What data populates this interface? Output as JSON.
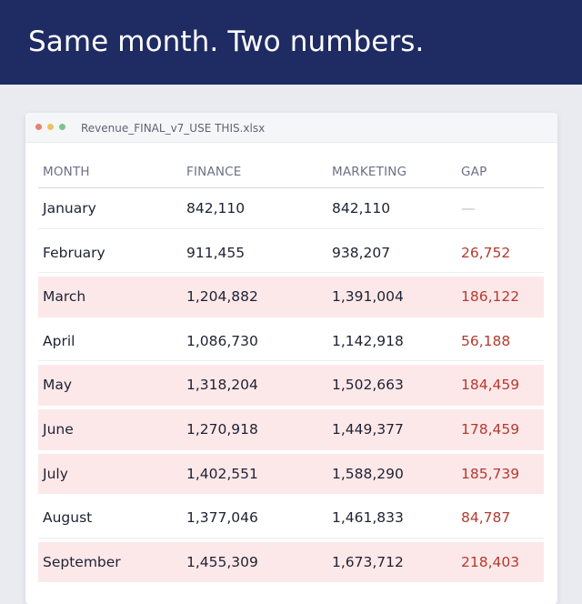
{
  "banner": {
    "headline": "Same month. Two numbers."
  },
  "window": {
    "filename": "Revenue_FINAL_v7_USE THIS.xlsx"
  },
  "table": {
    "columns": [
      "MONTH",
      "FINANCE",
      "MARKETING",
      "GAP"
    ],
    "rows": [
      {
        "month": "January",
        "finance": "842,110",
        "marketing": "842,110",
        "gap": "—",
        "highlighted": false
      },
      {
        "month": "February",
        "finance": "911,455",
        "marketing": "938,207",
        "gap": "26,752",
        "highlighted": false
      },
      {
        "month": "March",
        "finance": "1,204,882",
        "marketing": "1,391,004",
        "gap": "186,122",
        "highlighted": true
      },
      {
        "month": "April",
        "finance": "1,086,730",
        "marketing": "1,142,918",
        "gap": "56,188",
        "highlighted": false
      },
      {
        "month": "May",
        "finance": "1,318,204",
        "marketing": "1,502,663",
        "gap": "184,459",
        "highlighted": true
      },
      {
        "month": "June",
        "finance": "1,270,918",
        "marketing": "1,449,377",
        "gap": "178,459",
        "highlighted": true
      },
      {
        "month": "July",
        "finance": "1,402,551",
        "marketing": "1,588,290",
        "gap": "185,739",
        "highlighted": true
      },
      {
        "month": "August",
        "finance": "1,377,046",
        "marketing": "1,461,833",
        "gap": "84,787",
        "highlighted": false
      },
      {
        "month": "September",
        "finance": "1,455,309",
        "marketing": "1,673,712",
        "gap": "218,403",
        "highlighted": true
      }
    ]
  },
  "colors": {
    "banner_bg": "#1f2b63",
    "highlight_row": "#fde8e9",
    "gap_text": "#b53a2e"
  }
}
